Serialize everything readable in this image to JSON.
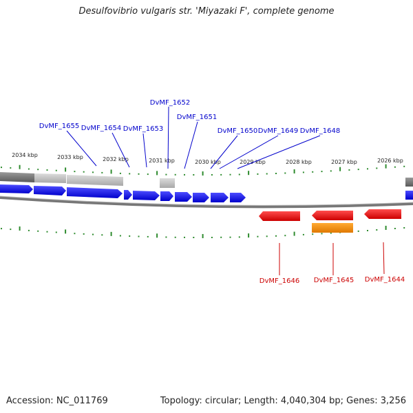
{
  "title": "Desulfovibrio vulgaris str. 'Miyazaki F', complete genome",
  "accession_text": "Accession: NC_011769",
  "topology_text": "Topology: circular; Length: 4,040,304 bp; Genes: 3,256",
  "ticks": [
    "2034 kbp",
    "2033 kbp",
    "2032 kbp",
    "2031 kbp",
    "2030 kbp",
    "2029 kbp",
    "2028 kbp",
    "2027 kbp",
    "2026 kbp"
  ],
  "genes_forward": [
    "DvMF_1655",
    "DvMF_1654",
    "DvMF_1653",
    "DvMF_1652",
    "DvMF_1651",
    "DvMF_1650",
    "DvMF_1649",
    "DvMF_1648"
  ],
  "genes_reverse": [
    "DvMF_1646",
    "DvMF_1645",
    "DvMF_1644"
  ],
  "colors": {
    "forward_gene": "#0000ee",
    "forward_label": "#0000cc",
    "reverse_gene": "#ee0000",
    "reverse_label": "#cc0000",
    "orange_gene": "#ff8c00",
    "tick_green": "#2e8b2e",
    "backbone": "#777777"
  }
}
